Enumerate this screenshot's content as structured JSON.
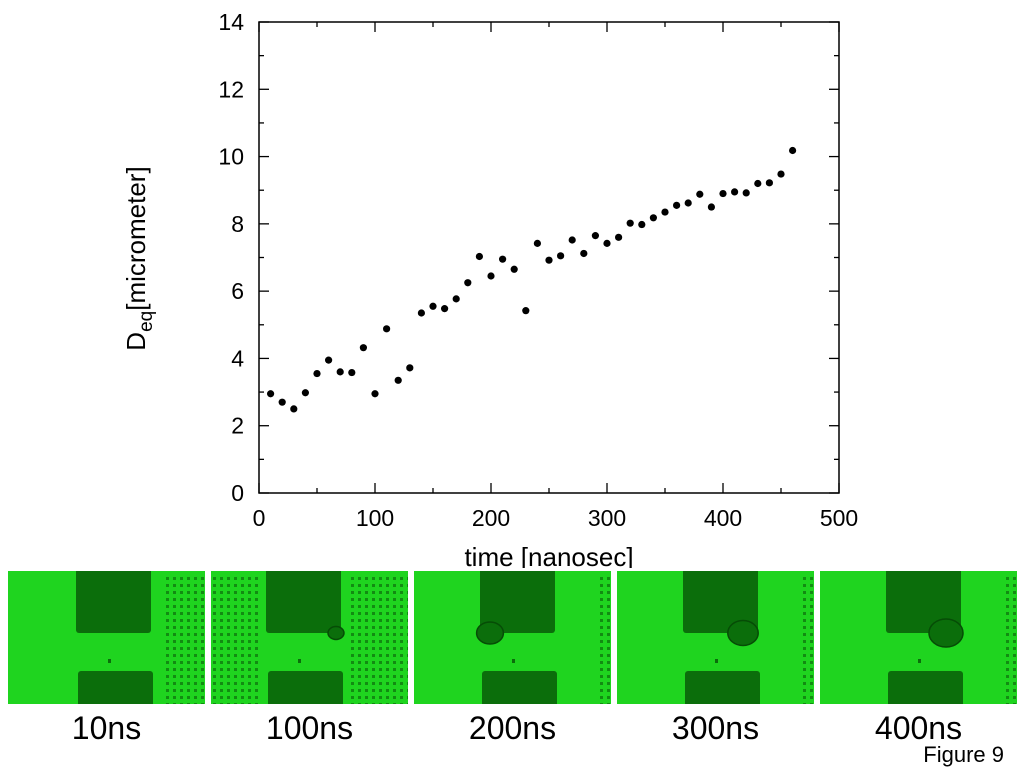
{
  "chart_data": {
    "type": "scatter",
    "title": "",
    "xlabel": "time [nanosec]",
    "ylabel_main": "D",
    "ylabel_sub": "eq",
    "ylabel_rest": "[micrometer]",
    "xlim": [
      0,
      500
    ],
    "ylim": [
      0,
      14
    ],
    "xticks": [
      0,
      100,
      200,
      300,
      400,
      500
    ],
    "yticks": [
      0,
      2,
      4,
      6,
      8,
      10,
      12,
      14
    ],
    "grid": false,
    "marker_color": "#000000",
    "series": [
      {
        "x": [
          10,
          20,
          30,
          40,
          50,
          60,
          70,
          80,
          90,
          100,
          110,
          120,
          130,
          140,
          150,
          160,
          170,
          180,
          190,
          200,
          210,
          220,
          230,
          240,
          250,
          260,
          270,
          280,
          290,
          300,
          310,
          320,
          330,
          340,
          350,
          360,
          370,
          380,
          390,
          400,
          410,
          420,
          430,
          440,
          450,
          460
        ],
        "y": [
          2.95,
          2.7,
          2.5,
          2.98,
          3.55,
          3.95,
          3.6,
          3.58,
          4.32,
          2.95,
          4.88,
          3.35,
          3.72,
          5.35,
          5.55,
          5.48,
          5.77,
          6.25,
          7.03,
          6.45,
          6.95,
          6.65,
          5.42,
          7.42,
          6.92,
          7.05,
          7.52,
          7.12,
          7.65,
          7.42,
          7.6,
          8.02,
          7.98,
          8.18,
          8.35,
          8.55,
          8.62,
          8.88,
          8.5,
          8.9,
          8.95,
          8.92,
          9.2,
          9.22,
          9.48,
          10.18
        ]
      }
    ]
  },
  "images": {
    "panels": [
      {
        "label": "10ns",
        "bubble": 0
      },
      {
        "label": "100ns",
        "bubble": 0.25
      },
      {
        "label": "200ns",
        "bubble": 0.7
      },
      {
        "label": "300ns",
        "bubble": 0.85
      },
      {
        "label": "400ns",
        "bubble": 1.0
      }
    ],
    "colors": {
      "background": "#1fd41f",
      "electrode": "#0b6e0b",
      "dot": "#128c12"
    }
  },
  "figure_label": "Figure 9"
}
